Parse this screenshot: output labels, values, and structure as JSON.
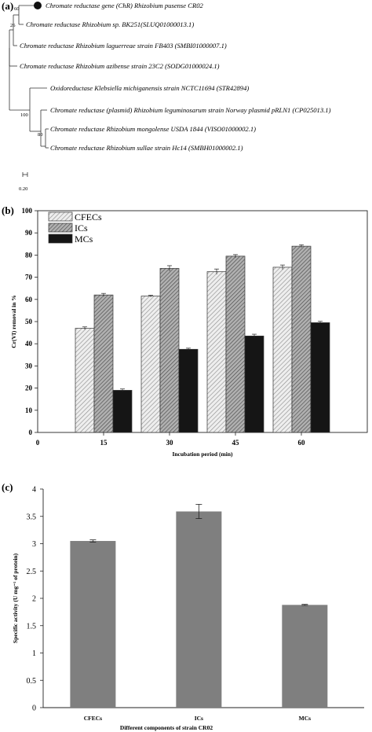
{
  "panel_labels": {
    "a": "(a)",
    "b": "(b)",
    "c": "(c)"
  },
  "tree": {
    "leaves": [
      "Chromate reductase gene (ChR) Rhizobium pusense CR02",
      "Chromate reductase Rhizobium sp. BK251(SLUQ01000013.1)",
      "Chromate reductase Rhizobium laguerreae strain FB403 (SMBI01000007.1)",
      "Chromate reductase Rhizobium azibense strain 23C2 (SODG01000024.1)",
      "Oxidoreductase Klebsiella michiganensis strain NCTC11694 (STR42894)",
      "Chromate reductase (plasmid) Rhizobium leguminosarum strain Norway plasmid pRLN1 (CP025013.1)",
      "Chromate reductase Rhizobium mongolense USDA 1844 (VISO01000002.1)",
      "Chromate reductase Rhizobium sullae strain Hc14 (SMBH01000002.1)"
    ],
    "bootstrap": [
      "60",
      "26",
      "100",
      "80"
    ],
    "scale_label": "0.20",
    "query_color": "#111111"
  },
  "chart_data": [
    {
      "type": "bar",
      "xlabel": "Incubation period (min)",
      "ylabel": "Cr(VI) removal in %",
      "ylim": [
        0,
        100
      ],
      "yticks": [
        "0",
        "10",
        "20",
        "30",
        "40",
        "50",
        "60",
        "70",
        "80",
        "90",
        "100"
      ],
      "x_axis_start_label": "0",
      "categories": [
        "15",
        "30",
        "45",
        "60"
      ],
      "legend_position": "top-left",
      "series": [
        {
          "name": "CFECs",
          "values": [
            47,
            61.5,
            72.5,
            74.5
          ],
          "errors": [
            0.6,
            0.4,
            1.2,
            1.0
          ],
          "pattern": "diagonal-light",
          "color": "#dedede"
        },
        {
          "name": "ICs",
          "values": [
            62,
            74,
            79.5,
            84
          ],
          "errors": [
            0.7,
            1.2,
            0.7,
            0.6
          ],
          "pattern": "diagonal-dark",
          "color": "#a9a9a9"
        },
        {
          "name": "MCs",
          "values": [
            19,
            37.5,
            43.5,
            49.5
          ],
          "errors": [
            0.6,
            0.5,
            0.8,
            0.6
          ],
          "pattern": "solid",
          "color": "#151515"
        }
      ]
    },
    {
      "type": "bar",
      "xlabel": "Different components of strain CR02",
      "ylabel": "Specific activity (U mg⁻¹ of protein)",
      "ylim": [
        0,
        4
      ],
      "yticks": [
        "0",
        "0.5",
        "1",
        "1.5",
        "2",
        "2.5",
        "3",
        "3.5",
        "4"
      ],
      "categories": [
        "CFECs",
        "ICs",
        "MCs"
      ],
      "values": [
        3.05,
        3.59,
        1.88
      ],
      "errors": [
        0.02,
        0.13,
        0.01
      ],
      "color": "#7f7f7f"
    }
  ]
}
